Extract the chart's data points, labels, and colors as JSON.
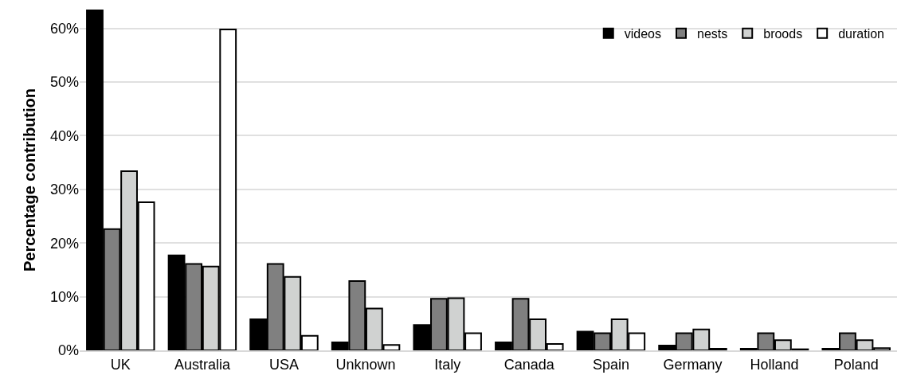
{
  "chart_data": {
    "type": "bar",
    "ylabel": "Percentage contribution",
    "categories": [
      "UK",
      "Australia",
      "USA",
      "Unknown",
      "Italy",
      "Canada",
      "Spain",
      "Germany",
      "Holland",
      "Poland"
    ],
    "series": [
      {
        "name": "videos",
        "color": "#000000",
        "values": [
          63.5,
          17.7,
          5.8,
          1.5,
          4.7,
          1.5,
          3.5,
          0.9,
          0.3,
          0.3
        ]
      },
      {
        "name": "nests",
        "color": "#808080",
        "values": [
          22.6,
          16.1,
          16.1,
          12.9,
          9.6,
          9.6,
          3.2,
          3.2,
          3.2,
          3.2
        ]
      },
      {
        "name": "broods",
        "color": "#d0d2d1",
        "values": [
          33.4,
          15.6,
          13.7,
          7.8,
          9.7,
          5.8,
          5.8,
          3.9,
          1.9,
          1.9
        ]
      },
      {
        "name": "duration",
        "color": "#ffffff",
        "values": [
          27.6,
          59.8,
          2.7,
          1.0,
          3.2,
          1.2,
          3.2,
          0.3,
          0.2,
          0.4
        ]
      }
    ],
    "ylim": [
      0,
      63.5
    ],
    "yticks": [
      {
        "value": 0,
        "label": "0%"
      },
      {
        "value": 10,
        "label": "10%"
      },
      {
        "value": 20,
        "label": "20%"
      },
      {
        "value": 30,
        "label": "30%"
      },
      {
        "value": 40,
        "label": "40%"
      },
      {
        "value": 50,
        "label": "50%"
      },
      {
        "value": 60,
        "label": "60%"
      }
    ],
    "grid": "y",
    "legend": "top right"
  }
}
